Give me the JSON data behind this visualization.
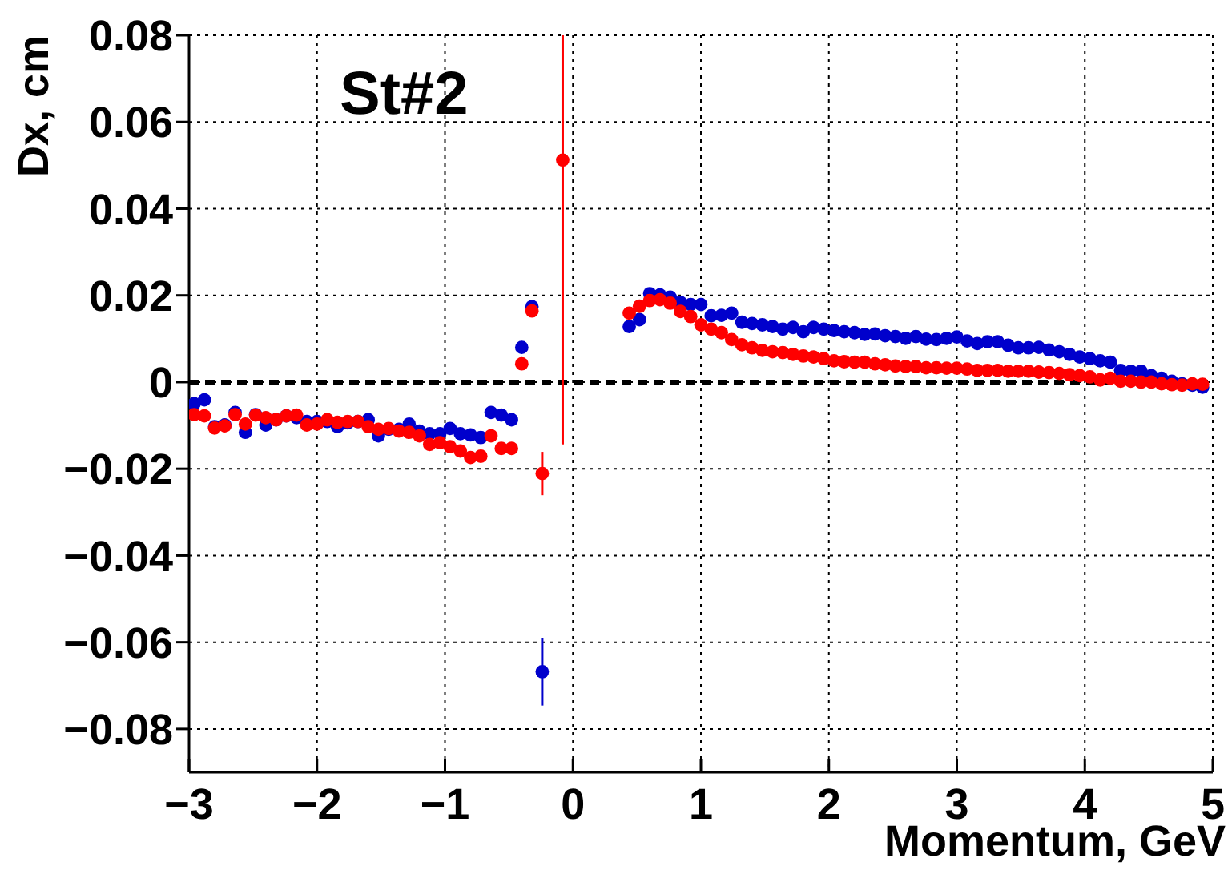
{
  "chart_data": {
    "type": "scatter",
    "xlabel": "Momentum, GeV",
    "ylabel": "Dx, cm",
    "annotations": [
      "St#2"
    ],
    "xlim": [
      -3,
      5
    ],
    "xticks": [
      {
        "value": -3,
        "label": "−3"
      },
      {
        "value": -2,
        "label": "−2"
      },
      {
        "value": -1,
        "label": "−1"
      },
      0,
      1,
      2,
      3,
      4,
      5
    ],
    "ylim": [
      -0.09,
      0.08
    ],
    "yticks": [
      {
        "value": -0.08,
        "label": "−0.08"
      },
      {
        "value": -0.06,
        "label": "−0.06"
      },
      {
        "value": -0.04,
        "label": "−0.04"
      },
      {
        "value": -0.02,
        "label": "−0.02"
      },
      0,
      0.02,
      0.04,
      0.06,
      0.08
    ],
    "grid": true,
    "marker": "circle",
    "legend": false,
    "ref_lines": [
      {
        "axis": "y",
        "value": 0,
        "color": "#000000",
        "line_style": "dashed"
      }
    ],
    "series": [
      {
        "color": "#0000cc",
        "x": [
          -2.96,
          -2.88,
          -2.8,
          -2.72,
          -2.64,
          -2.56,
          -2.48,
          -2.4,
          -2.32,
          -2.24,
          -2.16,
          -2.08,
          -2.0,
          -1.92,
          -1.84,
          -1.76,
          -1.68,
          -1.6,
          -1.52,
          -1.44,
          -1.36,
          -1.28,
          -1.2,
          -1.12,
          -1.04,
          -0.96,
          -0.88,
          -0.8,
          -0.72,
          -0.64,
          -0.56,
          -0.48,
          -0.4,
          -0.32,
          -0.24,
          0.44,
          0.52,
          0.6,
          0.68,
          0.76,
          0.84,
          0.92,
          1.0,
          1.08,
          1.16,
          1.24,
          1.32,
          1.4,
          1.48,
          1.56,
          1.64,
          1.72,
          1.8,
          1.88,
          1.96,
          2.04,
          2.12,
          2.2,
          2.28,
          2.36,
          2.44,
          2.52,
          2.6,
          2.68,
          2.76,
          2.84,
          2.92,
          3.0,
          3.08,
          3.16,
          3.24,
          3.32,
          3.4,
          3.48,
          3.56,
          3.64,
          3.72,
          3.8,
          3.88,
          3.96,
          4.04,
          4.12,
          4.2,
          4.28,
          4.36,
          4.44,
          4.52,
          4.6,
          4.68,
          4.76,
          4.84,
          4.92
        ],
        "values": [
          -0.005,
          -0.0041,
          -0.0103,
          -0.0099,
          -0.007,
          -0.0116,
          -0.0075,
          -0.0099,
          -0.0087,
          -0.0078,
          -0.0082,
          -0.0091,
          -0.0091,
          -0.0091,
          -0.0103,
          -0.0094,
          -0.0091,
          -0.0087,
          -0.0124,
          -0.0109,
          -0.0109,
          -0.0097,
          -0.0113,
          -0.0119,
          -0.0119,
          -0.0107,
          -0.0119,
          -0.0122,
          -0.0128,
          -0.007,
          -0.0076,
          -0.0087,
          0.008,
          0.0174,
          -0.0668,
          0.0128,
          0.0144,
          0.0204,
          0.0201,
          0.0196,
          0.0184,
          0.0179,
          0.0179,
          0.0153,
          0.0154,
          0.0159,
          0.0138,
          0.0135,
          0.0132,
          0.0128,
          0.0122,
          0.0126,
          0.0116,
          0.0126,
          0.0122,
          0.0119,
          0.0116,
          0.0114,
          0.011,
          0.0111,
          0.0107,
          0.0105,
          0.0101,
          0.0105,
          0.0099,
          0.0098,
          0.0101,
          0.0104,
          0.0095,
          0.0089,
          0.0093,
          0.0093,
          0.0085,
          0.0079,
          0.0079,
          0.008,
          0.0074,
          0.007,
          0.0064,
          0.0058,
          0.0054,
          0.0049,
          0.0046,
          0.0027,
          0.0025,
          0.0025,
          0.0015,
          0.0009,
          0.0002,
          -0.0004,
          -0.0007,
          -0.0012
        ],
        "errors": [
          null,
          null,
          null,
          null,
          null,
          null,
          null,
          null,
          null,
          null,
          null,
          null,
          null,
          null,
          null,
          null,
          null,
          null,
          null,
          null,
          null,
          null,
          null,
          null,
          null,
          null,
          null,
          null,
          null,
          null,
          null,
          null,
          null,
          null,
          0.0078,
          null,
          null,
          null,
          null,
          null,
          null,
          null,
          null,
          null,
          null,
          null,
          null,
          null,
          null,
          null,
          null,
          null,
          null,
          null,
          null,
          null,
          null,
          null,
          null,
          null,
          null,
          null,
          null,
          null,
          null,
          null,
          null,
          null,
          null,
          null,
          null,
          null,
          null,
          null,
          null,
          null,
          null,
          null,
          null,
          null,
          null,
          null,
          null,
          null,
          null,
          null,
          null,
          null,
          null,
          null,
          null,
          null
        ]
      },
      {
        "color": "#ff0000",
        "x": [
          -2.96,
          -2.88,
          -2.8,
          -2.72,
          -2.64,
          -2.56,
          -2.48,
          -2.4,
          -2.32,
          -2.24,
          -2.16,
          -2.08,
          -2.0,
          -1.92,
          -1.84,
          -1.76,
          -1.68,
          -1.6,
          -1.52,
          -1.44,
          -1.36,
          -1.28,
          -1.2,
          -1.12,
          -1.04,
          -0.96,
          -0.88,
          -0.8,
          -0.72,
          -0.64,
          -0.56,
          -0.48,
          -0.4,
          -0.32,
          -0.24,
          -0.08,
          0.44,
          0.52,
          0.6,
          0.68,
          0.76,
          0.84,
          0.92,
          1.0,
          1.08,
          1.16,
          1.24,
          1.32,
          1.4,
          1.48,
          1.56,
          1.64,
          1.72,
          1.8,
          1.88,
          1.96,
          2.04,
          2.12,
          2.2,
          2.28,
          2.36,
          2.44,
          2.52,
          2.6,
          2.68,
          2.76,
          2.84,
          2.92,
          3.0,
          3.08,
          3.16,
          3.24,
          3.32,
          3.4,
          3.48,
          3.56,
          3.64,
          3.72,
          3.8,
          3.88,
          3.96,
          4.04,
          4.12,
          4.2,
          4.28,
          4.36,
          4.44,
          4.52,
          4.6,
          4.68,
          4.76,
          4.84,
          4.92
        ],
        "values": [
          -0.0075,
          -0.0078,
          -0.0106,
          -0.0101,
          -0.0075,
          -0.0097,
          -0.0076,
          -0.0082,
          -0.0087,
          -0.0078,
          -0.0076,
          -0.0099,
          -0.0097,
          -0.0087,
          -0.0093,
          -0.0091,
          -0.0091,
          -0.0103,
          -0.0109,
          -0.0107,
          -0.0113,
          -0.0116,
          -0.0124,
          -0.0144,
          -0.014,
          -0.0149,
          -0.0159,
          -0.0174,
          -0.0171,
          -0.0124,
          -0.0153,
          -0.0153,
          0.0042,
          0.0164,
          -0.0211,
          0.0512,
          0.0159,
          0.0175,
          0.0188,
          0.019,
          0.0182,
          0.0163,
          0.0151,
          0.0132,
          0.0122,
          0.0114,
          0.0098,
          0.0086,
          0.0079,
          0.0073,
          0.007,
          0.0068,
          0.0064,
          0.006,
          0.0058,
          0.0054,
          0.0049,
          0.0047,
          0.0046,
          0.0046,
          0.0042,
          0.004,
          0.0037,
          0.0036,
          0.0036,
          0.0033,
          0.0033,
          0.0032,
          0.0032,
          0.003,
          0.0027,
          0.0027,
          0.0027,
          0.0025,
          0.0025,
          0.0025,
          0.0023,
          0.0022,
          0.002,
          0.0017,
          0.0015,
          0.0012,
          0.0005,
          0.0009,
          0.0002,
          0.0002,
          0,
          0,
          -0.0004,
          -0.0006,
          -0.0007,
          -0.0004,
          -0.0005
        ],
        "errors": [
          null,
          null,
          null,
          null,
          null,
          null,
          null,
          null,
          null,
          null,
          null,
          null,
          null,
          null,
          null,
          null,
          null,
          null,
          null,
          null,
          null,
          null,
          null,
          null,
          null,
          null,
          null,
          null,
          null,
          null,
          null,
          null,
          null,
          null,
          0.005,
          [
            -0.0144,
            0.08
          ],
          null,
          null,
          null,
          null,
          null,
          null,
          null,
          null,
          null,
          null,
          null,
          null,
          null,
          null,
          null,
          null,
          null,
          null,
          null,
          null,
          null,
          null,
          null,
          null,
          null,
          null,
          null,
          null,
          null,
          null,
          null,
          null,
          null,
          null,
          null,
          null,
          null,
          null,
          null,
          null,
          null,
          null,
          null,
          null,
          null,
          null,
          null,
          null,
          null,
          null,
          null,
          null,
          null,
          null,
          null,
          null,
          null
        ]
      }
    ]
  }
}
